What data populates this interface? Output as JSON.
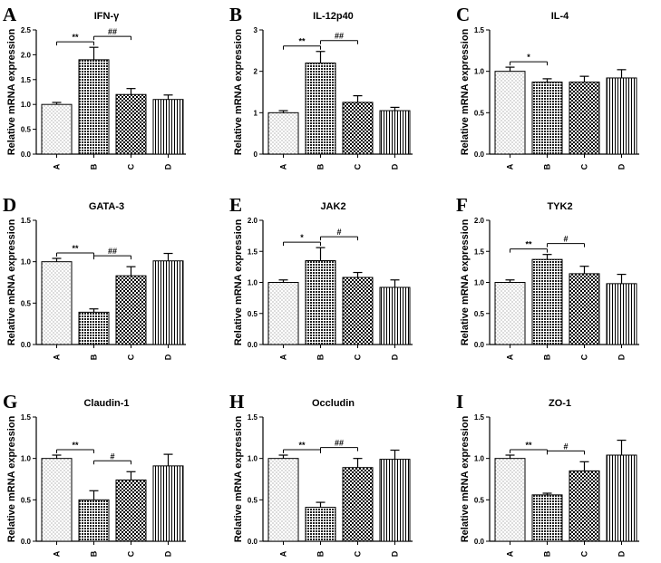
{
  "figure": {
    "ylabel": "Relative mRNA expression"
  },
  "chart_data": [
    {
      "letter": "A",
      "type": "bar",
      "title": "IFN-γ",
      "ylabel": "Relative mRNA expression",
      "categories": [
        "A",
        "B",
        "C",
        "D"
      ],
      "values": [
        1.0,
        1.9,
        1.2,
        1.1
      ],
      "errors": [
        0.04,
        0.25,
        0.12,
        0.09
      ],
      "ylim": [
        0,
        2.5
      ],
      "ytick_values": [
        0,
        0.5,
        1.0,
        1.5,
        2.0,
        2.5
      ],
      "ytick_labels": [
        "0.0",
        "0.5",
        "1.0",
        "1.5",
        "2.0",
        "2.5"
      ],
      "comparisons": [
        {
          "from": 0,
          "to": 1,
          "label": "**"
        },
        {
          "from": 1,
          "to": 2,
          "label": "##"
        }
      ]
    },
    {
      "letter": "B",
      "type": "bar",
      "title": "IL-12p40",
      "ylabel": "Relative mRNA expression",
      "categories": [
        "A",
        "B",
        "C",
        "D"
      ],
      "values": [
        1.0,
        2.2,
        1.25,
        1.05
      ],
      "errors": [
        0.05,
        0.28,
        0.16,
        0.08
      ],
      "ylim": [
        0,
        3
      ],
      "ytick_values": [
        0,
        1,
        2,
        3
      ],
      "ytick_labels": [
        "0",
        "1",
        "2",
        "3"
      ],
      "comparisons": [
        {
          "from": 0,
          "to": 1,
          "label": "**"
        },
        {
          "from": 1,
          "to": 2,
          "label": "##"
        }
      ]
    },
    {
      "letter": "C",
      "type": "bar",
      "title": "IL-4",
      "ylabel": "Relative mRNA expression",
      "categories": [
        "A",
        "B",
        "C",
        "D"
      ],
      "values": [
        1.0,
        0.87,
        0.87,
        0.92
      ],
      "errors": [
        0.05,
        0.04,
        0.07,
        0.1
      ],
      "ylim": [
        0,
        1.5
      ],
      "ytick_values": [
        0,
        0.5,
        1.0,
        1.5
      ],
      "ytick_labels": [
        "0.0",
        "0.5",
        "1.0",
        "1.5"
      ],
      "comparisons": [
        {
          "from": 0,
          "to": 1,
          "label": "*"
        }
      ]
    },
    {
      "letter": "D",
      "type": "bar",
      "title": "GATA-3",
      "ylabel": "Relative mRNA expression",
      "categories": [
        "A",
        "B",
        "C",
        "D"
      ],
      "values": [
        1.0,
        0.39,
        0.83,
        1.01
      ],
      "errors": [
        0.04,
        0.04,
        0.11,
        0.09
      ],
      "ylim": [
        0,
        1.5
      ],
      "ytick_values": [
        0,
        0.5,
        1.0,
        1.5
      ],
      "ytick_labels": [
        "0.0",
        "0.5",
        "1.0",
        "1.5"
      ],
      "comparisons": [
        {
          "from": 0,
          "to": 1,
          "label": "**"
        },
        {
          "from": 1,
          "to": 2,
          "label": "##"
        }
      ]
    },
    {
      "letter": "E",
      "type": "bar",
      "title": "JAK2",
      "ylabel": "Relative mRNA expression",
      "categories": [
        "A",
        "B",
        "C",
        "D"
      ],
      "values": [
        1.0,
        1.35,
        1.08,
        0.92
      ],
      "errors": [
        0.04,
        0.21,
        0.08,
        0.12
      ],
      "ylim": [
        0,
        2
      ],
      "ytick_values": [
        0,
        0.5,
        1.0,
        1.5,
        2.0
      ],
      "ytick_labels": [
        "0.0",
        "0.5",
        "1.0",
        "1.5",
        "2.0"
      ],
      "comparisons": [
        {
          "from": 0,
          "to": 1,
          "label": "*"
        },
        {
          "from": 1,
          "to": 2,
          "label": "#"
        }
      ]
    },
    {
      "letter": "F",
      "type": "bar",
      "title": "TYK2",
      "ylabel": "Relative mRNA expression",
      "categories": [
        "A",
        "B",
        "C",
        "D"
      ],
      "values": [
        1.0,
        1.37,
        1.14,
        0.98
      ],
      "errors": [
        0.04,
        0.08,
        0.12,
        0.15
      ],
      "ylim": [
        0,
        2
      ],
      "ytick_values": [
        0,
        0.5,
        1.0,
        1.5,
        2.0
      ],
      "ytick_labels": [
        "0.0",
        "0.5",
        "1.0",
        "1.5",
        "2.0"
      ],
      "comparisons": [
        {
          "from": 0,
          "to": 1,
          "label": "**"
        },
        {
          "from": 1,
          "to": 2,
          "label": "#"
        }
      ]
    },
    {
      "letter": "G",
      "type": "bar",
      "title": "Claudin-1",
      "ylabel": "Relative mRNA expression",
      "categories": [
        "A",
        "B",
        "C",
        "D"
      ],
      "values": [
        1.0,
        0.5,
        0.74,
        0.91
      ],
      "errors": [
        0.04,
        0.11,
        0.1,
        0.14
      ],
      "ylim": [
        0,
        1.5
      ],
      "ytick_values": [
        0,
        0.5,
        1.0,
        1.5
      ],
      "ytick_labels": [
        "0.0",
        "0.5",
        "1.0",
        "1.5"
      ],
      "comparisons": [
        {
          "from": 0,
          "to": 1,
          "label": "**"
        },
        {
          "from": 1,
          "to": 2,
          "label": "#"
        }
      ]
    },
    {
      "letter": "H",
      "type": "bar",
      "title": "Occludin",
      "ylabel": "Relative mRNA expression",
      "categories": [
        "A",
        "B",
        "C",
        "D"
      ],
      "values": [
        1.0,
        0.41,
        0.89,
        0.99
      ],
      "errors": [
        0.04,
        0.06,
        0.11,
        0.11
      ],
      "ylim": [
        0,
        1.5
      ],
      "ytick_values": [
        0,
        0.5,
        1.0,
        1.5
      ],
      "ytick_labels": [
        "0.0",
        "0.5",
        "1.0",
        "1.5"
      ],
      "comparisons": [
        {
          "from": 0,
          "to": 1,
          "label": "**"
        },
        {
          "from": 1,
          "to": 2,
          "label": "##"
        }
      ]
    },
    {
      "letter": "I",
      "type": "bar",
      "title": "ZO-1",
      "ylabel": "Relative mRNA expression",
      "categories": [
        "A",
        "B",
        "C",
        "D"
      ],
      "values": [
        1.0,
        0.56,
        0.85,
        1.04
      ],
      "errors": [
        0.04,
        0.02,
        0.11,
        0.18
      ],
      "ylim": [
        0,
        1.5
      ],
      "ytick_values": [
        0,
        0.5,
        1.0,
        1.5
      ],
      "ytick_labels": [
        "0.0",
        "0.5",
        "1.0",
        "1.5"
      ],
      "comparisons": [
        {
          "from": 0,
          "to": 1,
          "label": "**"
        },
        {
          "from": 1,
          "to": 2,
          "label": "#"
        }
      ]
    }
  ]
}
